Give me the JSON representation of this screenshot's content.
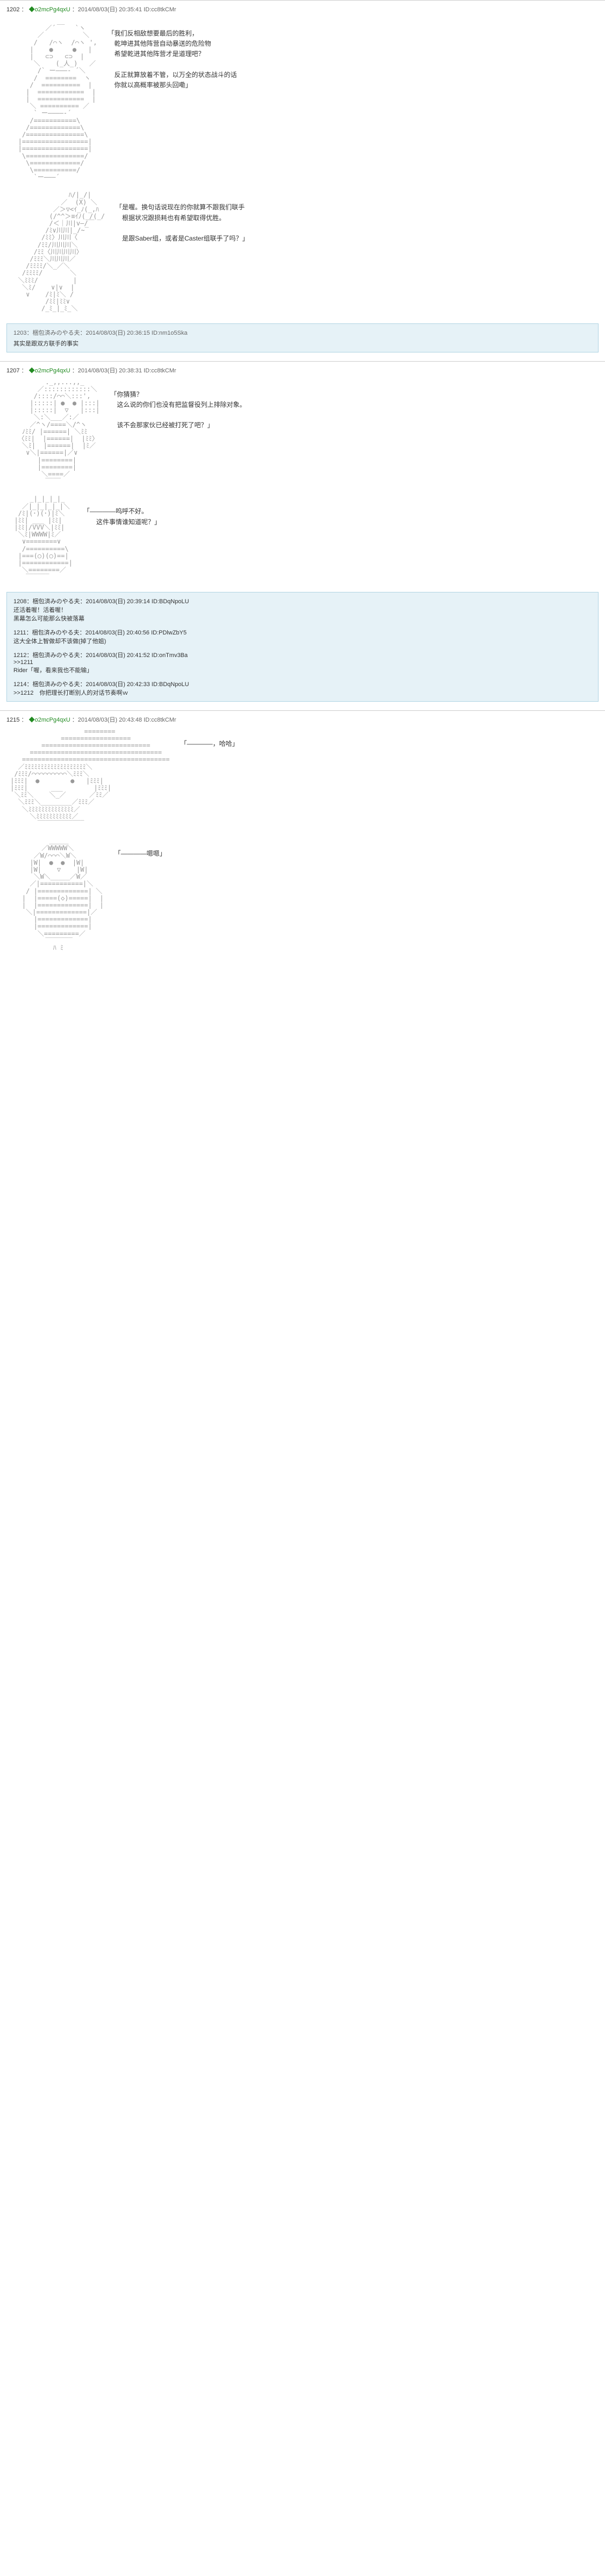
{
  "posts": [
    {
      "no": "1202",
      "trip": "◆o2mcPg4qxU",
      "date": "2014/08/03(日) 20:35:41",
      "id": "ID:cc8tkCMr",
      "blocks": [
        {
          "aa": "             __\n          ／´     `ヽ\n        ／          ＼\n       /   /⌒ヽ  /⌒ヽ ',\n      |    ●     ●   |\n      |   ⊂⊃   ⊂⊃  |\n       ＼    (_人_)   ／\n        /` ー―――‐ ´＼\n       /  ========  ヽ\n      /  ==========  |\n     |  ============  |\n     |  ============  |\n      ＼ ========== ／\n       ` ー――――‐´\n      /===========\\\n     /=============\\\n    /===============\\\n   |=================|\n   |=================|\n    \\===============/\n     \\=============/\n      \\===========/\n       `ー―――´",
          "dialogue": "「我们反相敌想要最后的胜利，\n　乾坤进其他阵营自动暴送的危险物\n　希望乾进其他阵营才是道理吧？\n\n　反正就算放着不管，以万全的状态战斗的话\n　你就以高概率被那头回嘞」"
        },
        {
          "aa": "                ﾊ/|_/|\n              ／  (X) ＼\n            ／＞▽<ｲ_ﾉ(_,ﾊ\n           (/^^＞≡ｲﾉ(_/(_/\n           /＜｜川|v―/￣\n          /ﾐ∨川川|_/~‾\n         /ﾐﾐ〉川川〈\n        /ﾐﾐ/川川川＼\n       /ﾐﾐ〈川川川川〉\n      /ﾐﾐﾐ＼川川川／\n     /ﾐﾐﾐﾐ/＼_／＼\n    /ﾐﾐﾐﾐ/       ＼\n   ＼ﾐﾐﾐ/         |\n    ＼ﾐ/    ∨|∨  |\n     ∨    /ﾐ|ﾐ＼ /\n          /ﾐﾐ|ﾐﾐ∨\n         /_ﾐ_|_ﾐ_＼",
          "dialogue": "「是喔。换句话说现在的你就算不跟我们联手\n　根据状况跟损耗也有希望取得优胜。\n\n　是跟Saber组，或者是Caster组联手了吗？」"
        }
      ],
      "replies": [
        {
          "no": "1203",
          "name": "梱包済みのやる夫",
          "date": "2014/08/03(日) 20:36:15",
          "id": "ID:nm1o5Ska",
          "body": "其实是跟双方联手的事实"
        }
      ]
    },
    {
      "no": "1207",
      "trip": "◆o2mcPg4qxU",
      "date": "2014/08/03(日) 20:38:31",
      "id": "ID:cc8tkCMr",
      "blocks": [
        {
          "aa": "          ._,,...,,_\n        ／::::::::::::＼\n       /::::/⌒⌒＼:::',\n      |:::::| ●  ● |:::|\n      |:::::|  ▽   |:::|\n       ＼:＼___／:／\n      ／^ヽ/====＼/^ヽ\n    ﾉﾐﾐ/ |======| ＼ﾐﾐ\n   〈ﾐﾐ|  |======|  |ﾐﾐ〉\n    ＼ﾐ|  |======|  |ﾐ／\n     ∨＼|======|／∨\n        |========|\n        |========|\n         ＼====／\n          ‾‾‾‾",
          "dialogue": "「你猜猜？\n　这么说的你们也没有把监督役列上排除对象。\n\n　该不会那家伙已经被打死了吧？」"
        },
        {
          "aa": "      _|_|_|_|_\n    ／|_|_|_|_|＼\n   /ﾐ|(･)(･)|ﾐ＼\n  |ﾐﾐ| ___ |ﾐﾐ|\n  |ﾐﾐ|/VVV＼|ﾐﾐ|\n   ＼ﾐ|WWWW|ﾐ／\n    ∨========∨\n    /==========\\\n   |===(○)(○)==|\n   |============|\n    ＼========／\n     ‾‾‾‾‾‾",
          "dialogue": "「――――呜呼不好。\n　　这件事情谁知道呢？」"
        }
      ],
      "multi_replies": [
        {
          "no": "1208",
          "name": "梱包済みのやる夫",
          "date": "2014/08/03(日) 20:39:14",
          "id": "ID:BDqNpoLU",
          "body": "还活着喔！活着喔！\n黑幕怎么可能那么快被落幕"
        },
        {
          "no": "1211",
          "name": "梱包済みのやる夫",
          "date": "2014/08/03(日) 20:40:56",
          "id": "ID:PDlwZbY5",
          "body": "这大全体上智做却不该做(掉了他姐)"
        },
        {
          "no": "1212",
          "name": "梱包済みのやる夫",
          "date": "2014/08/03(日) 20:41:52",
          "id": "ID:onTmv3Ba",
          "body": ">>1211\nRider「喔，看来我也不能输」"
        },
        {
          "no": "1214",
          "name": "梱包済みのやる夫",
          "date": "2014/08/03(日) 20:42:33",
          "id": "ID:BDqNpoLU",
          "body": ">>1212　你把理长打断别人的对话节奏啊ｗ"
        }
      ]
    },
    {
      "no": "1215",
      "trip": "◆o2mcPg4qxU",
      "date": "2014/08/03(日) 20:43:48",
      "id": "ID:cc8tkCMr",
      "blocks": [
        {
          "aa": "                    ========\n              ==================\n         ============================\n      ==================================\n    ======================================\n   ／ﾐﾐﾐﾐﾐﾐﾐﾐﾐﾐﾐﾐﾐﾐﾐﾐﾐﾐﾐ＼\n  /ﾐﾐﾐ/⌒⌒⌒⌒⌒⌒⌒⌒⌒＼ﾐﾐﾐ＼\n |ﾐﾐﾐ|  ●        ●   |ﾐﾐﾐ|\n |ﾐﾐﾐ|      ___        |ﾐﾐﾐ|\n  ＼ﾐﾐ＼    ＼_／      ／ﾐﾐ／\n   ＼ﾐﾐﾐ＼________／ﾐﾐﾐ／\n    ＼ﾐﾐﾐﾐﾐﾐﾐﾐﾐﾐﾐﾐﾐﾐ／\n      ＼ﾐﾐﾐﾐﾐﾐﾐﾐﾐﾐﾐ／\n        ‾‾‾‾‾‾‾‾‾‾‾‾",
          "dialogue": "「――――，哈哈」"
        },
        {
          "aa": "           ＿＿＿\n         ／WWWWW＼\n       ／W/⌒⌒⌒＼W＼\n      |W|  ●  ●  |W|\n      |W|    ▽    |W|\n       ＼W＼_____／W／\n      ／|===========|＼\n     / |=============| ＼\n    |  |=====(◇)=====|  |\n    |  |=============|  |\n     ＼|=============|／\n       |=============|\n       |=============|\n        ＼=========／\n          ‾‾‾‾‾‾‾\n            ﾊ ﾐ",
          "dialogue": "「――――嗯嗯」"
        }
      ]
    }
  ]
}
